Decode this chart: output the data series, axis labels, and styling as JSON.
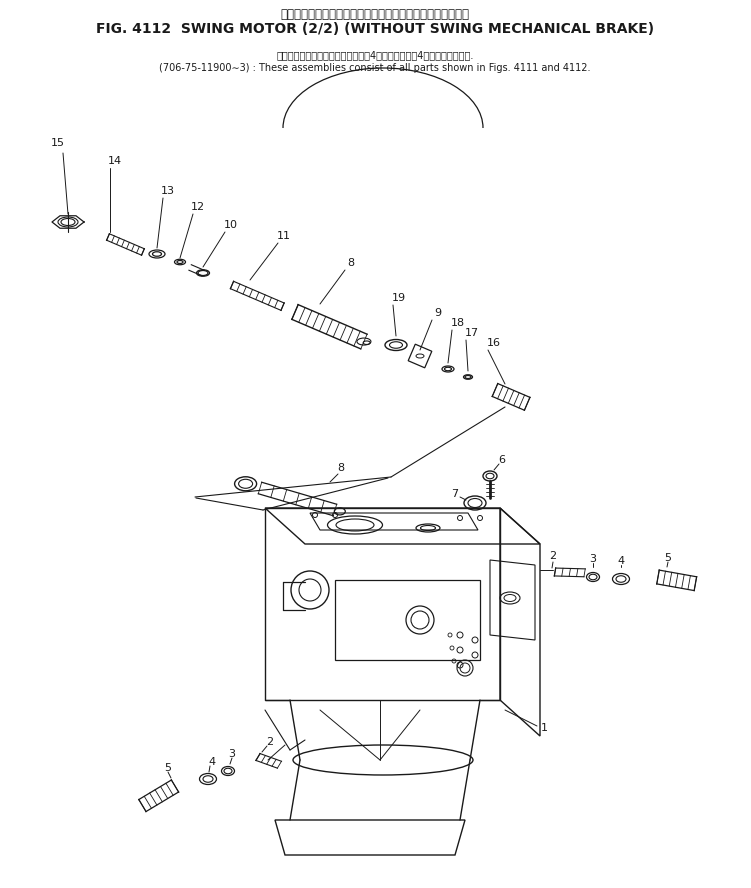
{
  "title_jp": "スイング　モータ　　　　　　旋回メカニカルブレーキなし",
  "title_en": "FIG. 4112  SWING MOTOR (2/2) (WITHOUT SWING MECHANICAL BRAKE)",
  "sub_jp": "これらのアセンブリの構成部品は第4１１図および第4１２図を含みます.",
  "sub_en": "(706-75-11900∼3) : These assemblies consist of all parts shown in Figs. 4111 and 4112.",
  "bg": "#ffffff",
  "lc": "#1a1a1a",
  "figsize": [
    7.51,
    8.88
  ],
  "dpi": 100
}
